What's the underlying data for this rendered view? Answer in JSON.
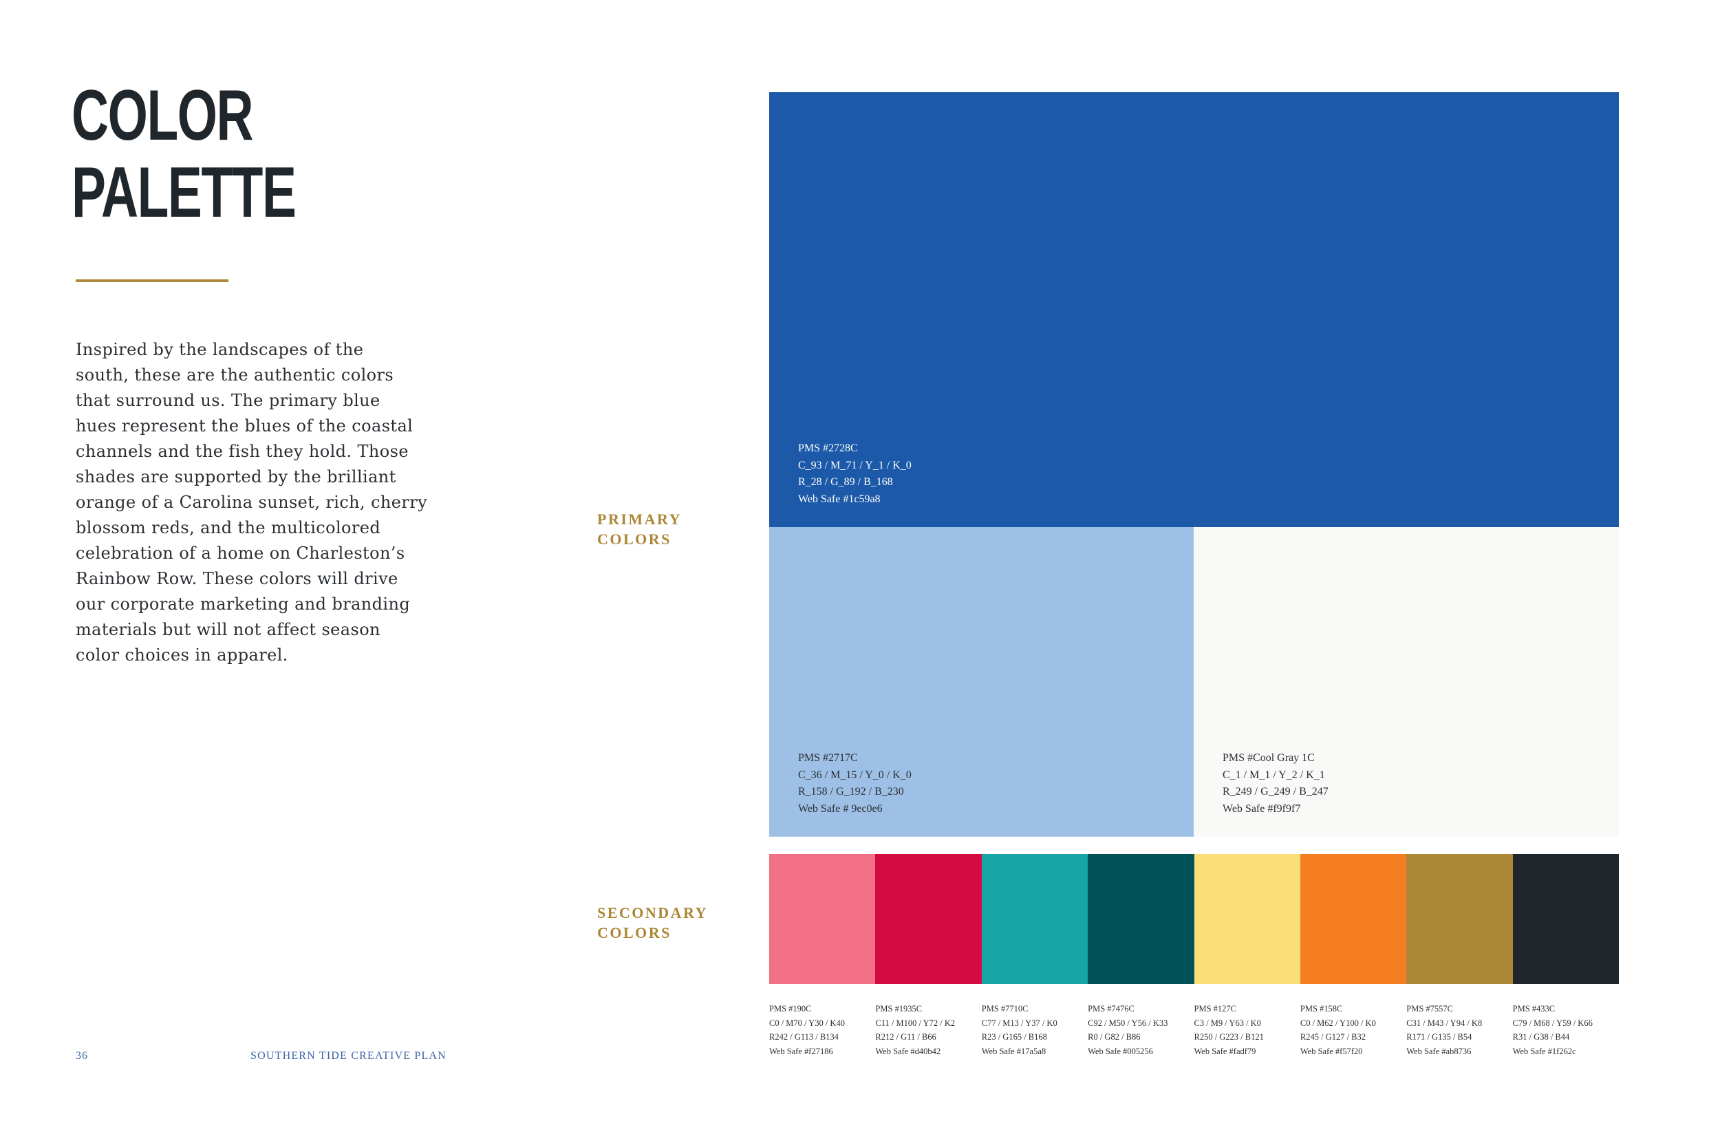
{
  "page": {
    "title_line1": "COLOR",
    "title_line2": "PALETTE",
    "accent_rule_color": "#b08a3a",
    "body": "Inspired by the landscapes of the south, these are the authentic colors that surround us. The primary blue hues represent the blues of the coastal channels and the fish they hold. Those shades are supported by the brilliant orange of a Carolina sunset, rich, cherry blossom reds, and the multicolored celebration of a home on Charleston’s Rainbow Row. These colors will drive our corporate marketing and branding materials but will not affect season color choices in apparel.",
    "body_lines": [
      "Inspired by the landscapes of the",
      "south, these are the authentic colors",
      "that surround us. The primary blue",
      "hues represent the blues of the coastal",
      "channels and the fish they hold. Those",
      "shades are supported by the brilliant",
      "orange of a Carolina sunset, rich, cherry",
      "blossom reds, and the multicolored",
      "celebration of a home on Charleston’s",
      "Rainbow Row. These colors will drive",
      "our corporate marketing and branding",
      "materials but will not affect season",
      "color choices in apparel."
    ]
  },
  "footer": {
    "page_number": "36",
    "document_title": "SOUTHERN TIDE CREATIVE PLAN"
  },
  "primary": {
    "label_line1": "PRIMARY",
    "label_line2": "COLORS",
    "swatches": [
      {
        "hex": "#1c59a8",
        "pms": "PMS #2728C",
        "cmyk": "C_93 / M_71 / Y_1 / K_0",
        "rgb": "R_28 / G_89 / B_168",
        "web": "Web Safe #1c59a8"
      },
      {
        "hex": "#9ec0e6",
        "pms": "PMS #2717C",
        "cmyk": "C_36 / M_15 / Y_0 / K_0",
        "rgb": "R_158 / G_192 / B_230",
        "web": "Web Safe # 9ec0e6"
      },
      {
        "hex": "#f9f9f7",
        "pms": "PMS #Cool Gray 1C",
        "cmyk": "C_1 / M_1 / Y_2 / K_1",
        "rgb": "R_249 / G_249 / B_247",
        "web": "Web Safe #f9f9f7"
      }
    ]
  },
  "secondary": {
    "label_line1": "SECONDARY",
    "label_line2": "COLORS",
    "swatches": [
      {
        "hex": "#f27186",
        "pms": "PMS #190C",
        "cmyk": "C0 / M70 / Y30 / K40",
        "rgb": "R242 / G113 / B134",
        "web": "Web Safe #f27186"
      },
      {
        "hex": "#d40b42",
        "pms": "PMS #1935C",
        "cmyk": "C11 / M100 / Y72 / K2",
        "rgb": "R212 / G11 / B66",
        "web": "Web Safe #d40b42"
      },
      {
        "hex": "#17a5a8",
        "pms": "PMS #7710C",
        "cmyk": "C77 / M13 / Y37 / K0",
        "rgb": "R23 / G165 / B168",
        "web": "Web Safe #17a5a8"
      },
      {
        "hex": "#005256",
        "pms": "PMS #7476C",
        "cmyk": "C92 / M50 / Y56 / K33",
        "rgb": "R0 / G82 / B86",
        "web": "Web Safe #005256"
      },
      {
        "hex": "#fadf79",
        "pms": "PMS #127C",
        "cmyk": "C3 / M9 / Y63 / K0",
        "rgb": "R250 / G223 / B121",
        "web": "Web Safe #fadf79"
      },
      {
        "hex": "#f57f20",
        "pms": "PMS #158C",
        "cmyk": "C0 / M62 / Y100 / K0",
        "rgb": "R245 / G127 / B32",
        "web": "Web Safe #f57f20"
      },
      {
        "hex": "#ab8736",
        "pms": "PMS #7557C",
        "cmyk": "C31 / M43 / Y94 / K8",
        "rgb": "R171 / G135 / B54",
        "web": "Web Safe #ab8736"
      },
      {
        "hex": "#1f262c",
        "pms": "PMS #433C",
        "cmyk": "C79 / M68 / Y59 / K66",
        "rgb": "R31 / G38 / B44",
        "web": "Web Safe #1f262c"
      }
    ]
  }
}
